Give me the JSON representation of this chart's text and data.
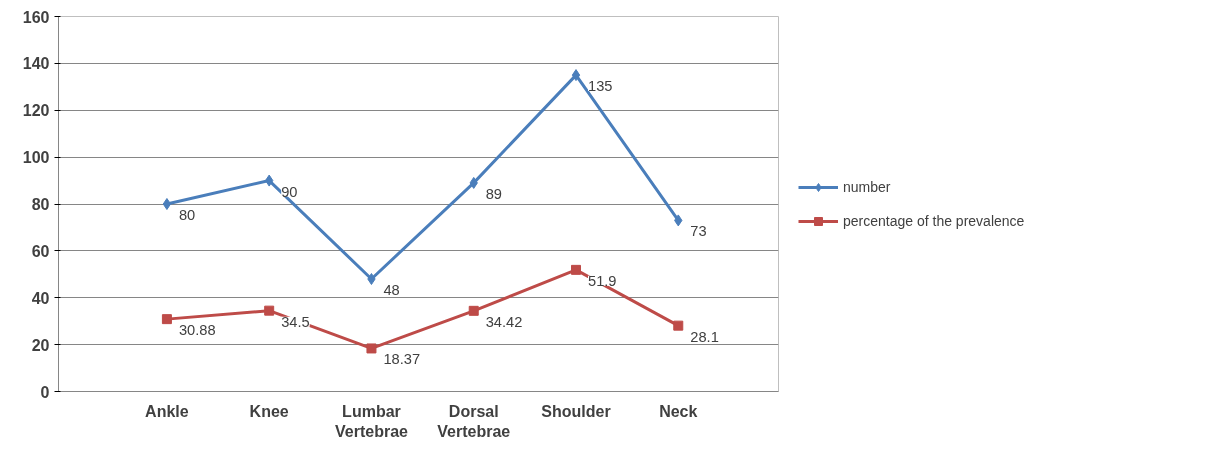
{
  "chart_data": {
    "type": "line",
    "categories": [
      "Ankle",
      "Knee",
      "Lumbar\nVertebrae",
      "Dorsal\nVertebrae",
      "Shoulder",
      "Neck"
    ],
    "series": [
      {
        "name": "number",
        "color": "#4a7ebb",
        "marker": "diamond",
        "values": [
          80,
          90,
          48,
          89,
          135,
          73
        ]
      },
      {
        "name": "percentage of the prevalence",
        "color": "#be4b48",
        "marker": "square",
        "values": [
          30.88,
          34.5,
          18.37,
          34.42,
          51.9,
          28.1
        ]
      }
    ],
    "ylim": [
      0,
      160
    ],
    "yticks": [
      0,
      20,
      40,
      60,
      80,
      100,
      120,
      140,
      160
    ],
    "grid": "y",
    "legend": "right",
    "data_labels": true
  }
}
